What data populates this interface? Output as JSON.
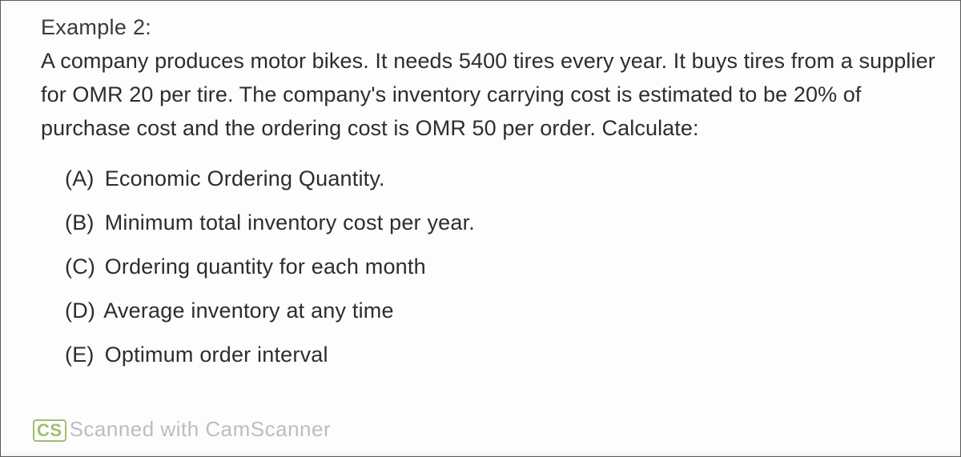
{
  "heading": "Example 2:",
  "body": "A company produces motor bikes.  It needs 5400 tires every year.  It buys tires from a supplier for OMR 20 per tire.  The company's inventory carrying cost is estimated to be 20% of purchase cost and the ordering cost is OMR 50 per order.  Calculate:",
  "questions": [
    {
      "label": "(A)",
      "text": "Economic Ordering Quantity."
    },
    {
      "label": "(B)",
      "text": "Minimum total inventory cost per year."
    },
    {
      "label": "(C)",
      "text": "Ordering quantity for each month"
    },
    {
      "label": "(D)",
      "text": "Average inventory at any time"
    },
    {
      "label": "(E)",
      "text": "Optimum order interval"
    }
  ],
  "watermark": {
    "cs": "CS",
    "text": "Scanned with CamScanner"
  }
}
